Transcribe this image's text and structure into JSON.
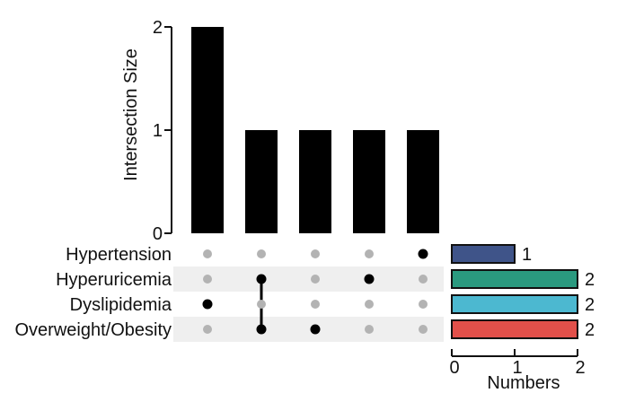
{
  "chart_data": {
    "type": "bar",
    "subtype": "upset",
    "title": "",
    "ylabel": "Intersection Size",
    "ylim": [
      0,
      2
    ],
    "yticks": [
      "0",
      "1",
      "2"
    ],
    "intersections": [
      {
        "sets": [
          "Dyslipidemia"
        ],
        "value": 2
      },
      {
        "sets": [
          "Hyperuricemia",
          "Overweight/Obesity"
        ],
        "value": 1
      },
      {
        "sets": [
          "Overweight/Obesity"
        ],
        "value": 1
      },
      {
        "sets": [
          "Hyperuricemia"
        ],
        "value": 1
      },
      {
        "sets": [
          "Hypertension"
        ],
        "value": 1
      }
    ],
    "sets": [
      {
        "name": "Hypertension",
        "size": 1,
        "size_label": "1",
        "color": "#3f5489"
      },
      {
        "name": "Hyperuricemia",
        "size": 2,
        "size_label": "2",
        "color": "#2a9a7f"
      },
      {
        "name": "Dyslipidemia",
        "size": 2,
        "size_label": "2",
        "color": "#4cb8d0"
      },
      {
        "name": "Overweight/Obesity",
        "size": 2,
        "size_label": "2",
        "color": "#e2504a"
      }
    ],
    "set_size_axis": {
      "xlabel": "Numbers",
      "xlim": [
        0,
        2
      ],
      "xticks": [
        "0",
        "1",
        "2"
      ]
    },
    "colors": {
      "bar": "#000000",
      "dot_active": "#000000",
      "dot_inactive": "#b3b3b3",
      "stripe": "#efefef"
    },
    "grid": false
  }
}
